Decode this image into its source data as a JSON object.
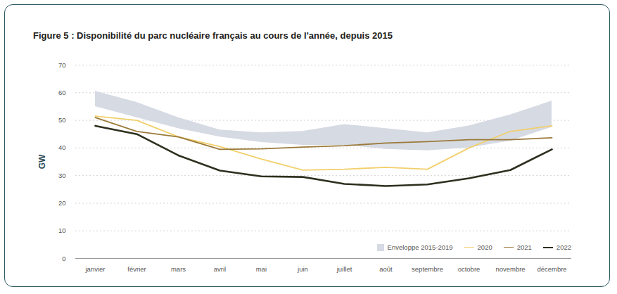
{
  "chart_data": {
    "type": "line",
    "title": "Figure 5 : Disponibilité du parc nucléaire français au cours de l'année, depuis 2015",
    "y_label": "GW",
    "categories": [
      "janvier",
      "février",
      "mars",
      "avril",
      "mai",
      "juin",
      "juillet",
      "août",
      "septembre",
      "octobre",
      "novembre",
      "décembre"
    ],
    "series": [
      {
        "name": "Enveloppe 2015-2019",
        "type": "area",
        "color": "#d6dae3",
        "lower": [
          55,
          51,
          47,
          44,
          42,
          41,
          41,
          39.5,
          39,
          40,
          42.5,
          47.5
        ],
        "upper": [
          60.5,
          56.5,
          51,
          46.5,
          45.5,
          46,
          48.5,
          47,
          45.5,
          48,
          52,
          57
        ]
      },
      {
        "name": "2020",
        "type": "line",
        "color": "#f2cf6b",
        "values": [
          51.5,
          50,
          44,
          40.5,
          36,
          32,
          32.3,
          33,
          32.3,
          40,
          46,
          48
        ]
      },
      {
        "name": "2021",
        "type": "line",
        "color": "#9b7a3a",
        "values": [
          51,
          46,
          44,
          39.5,
          39.7,
          40.3,
          40.8,
          41.8,
          42.3,
          43,
          43,
          43.7
        ]
      },
      {
        "name": "2022",
        "type": "line",
        "color": "#2f2f1f",
        "values": [
          48,
          45,
          37.3,
          31.8,
          29.7,
          29.5,
          27,
          26.2,
          26.8,
          29,
          32,
          39.5
        ]
      }
    ],
    "ylim": [
      0,
      70
    ],
    "yticks": [
      0,
      10,
      20,
      30,
      40,
      50,
      60,
      70
    ],
    "grid": true,
    "legend": "bottom-right"
  }
}
